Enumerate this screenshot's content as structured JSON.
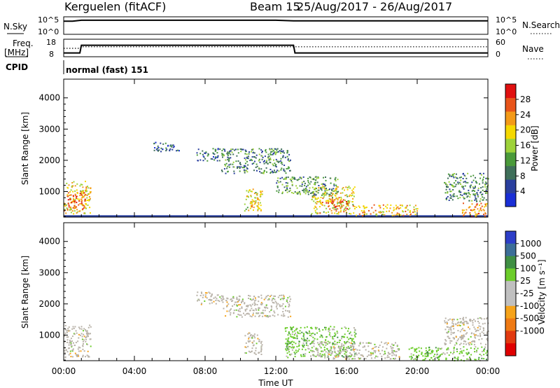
{
  "header": {
    "station": "Kerguelen (fitACF)",
    "beam_label": "Beam 15",
    "date_range": "25/Aug/2017 - 26/Aug/2017"
  },
  "colors": {
    "power_scale": [
      "#1a2fd6",
      "#2a3f9e",
      "#3f6f5a",
      "#4a9a3a",
      "#9ed23a",
      "#f5d800",
      "#f39a18",
      "#e8541a",
      "#e01010"
    ],
    "velocity_scale": [
      "#2d3ec8",
      "#3c6e98",
      "#3f8f43",
      "#6ccd2a",
      "#c0c0c0",
      "#c0c0c0",
      "#f6a31a",
      "#ef7a14",
      "#e23a10",
      "#e00000"
    ],
    "ground_scatter": "#b8b2a8"
  },
  "chart_data": [
    {
      "type": "line",
      "panel": "nsky-nsearch",
      "left_label": "N.Sky",
      "right_label": "N.Search",
      "left_ticks": [
        "10^5",
        "10^0"
      ],
      "right_ticks": [
        "10^5",
        "10^0"
      ],
      "x": [
        "00:00",
        "00:30",
        "01:00",
        "02:00",
        "04:00",
        "08:00",
        "12:00",
        "13:00",
        "16:00",
        "20:00",
        "24:00"
      ],
      "series": [
        {
          "values": [
            4.0,
            4.0,
            4.3,
            4.3,
            4.3,
            4.3,
            4.3,
            4.1,
            4.1,
            4.1,
            4.1
          ]
        }
      ]
    },
    {
      "type": "line",
      "panel": "freq-nave",
      "left_label": "Freq. [MHz]",
      "right_label": "Nave",
      "left_ticks": [
        18,
        8
      ],
      "right_ticks": [
        60,
        0
      ],
      "x": [
        "00:00",
        "00:55",
        "01:00",
        "13:00",
        "13:05",
        "24:00"
      ],
      "series": [
        {
          "name": "",
          "values": [
            10.0,
            10.0,
            15.0,
            15.0,
            10.0,
            10.0
          ]
        },
        {
          "name": "",
          "values": [
            30,
            30,
            36,
            36,
            36,
            36
          ]
        }
      ]
    },
    {
      "type": "table",
      "panel": "cpid",
      "label": "CPID",
      "value": "normal (fast) 151"
    },
    {
      "type": "heatmap",
      "panel": "power",
      "ylabel": "Slant Range [km]",
      "yticks": [
        1000,
        2000,
        3000,
        4000
      ],
      "ylim": [
        180,
        4600
      ],
      "xlim_hours": [
        0,
        24
      ],
      "colorbar_label": "Power [dB]",
      "colorbar_ticks": [
        4,
        8,
        12,
        16,
        20,
        24,
        28
      ],
      "regions": [
        {
          "t0": 0.0,
          "t1": 1.5,
          "r0": 300,
          "r1": 1350,
          "level": 20
        },
        {
          "t0": 0.2,
          "t1": 1.2,
          "r0": 450,
          "r1": 1000,
          "level": 28
        },
        {
          "t0": 10.2,
          "t1": 11.2,
          "r0": 400,
          "r1": 1100,
          "level": 18
        },
        {
          "t0": 10.5,
          "t1": 11.0,
          "r0": 500,
          "r1": 800,
          "level": 24
        },
        {
          "t0": 14.0,
          "t1": 16.5,
          "r0": 300,
          "r1": 1200,
          "level": 20
        },
        {
          "t0": 14.8,
          "t1": 16.0,
          "r0": 400,
          "r1": 800,
          "level": 26
        },
        {
          "t0": 16.5,
          "t1": 20.0,
          "r0": 250,
          "r1": 600,
          "level": 22
        },
        {
          "t0": 22.5,
          "t1": 24.0,
          "r0": 200,
          "r1": 650,
          "level": 24
        },
        {
          "t0": 8.9,
          "t1": 12.8,
          "r0": 1600,
          "r1": 2400,
          "level": 10
        },
        {
          "t0": 12.0,
          "t1": 15.5,
          "r0": 900,
          "r1": 1500,
          "level": 12
        },
        {
          "t0": 21.5,
          "t1": 24.0,
          "r0": 700,
          "r1": 1600,
          "level": 10
        },
        {
          "t0": 5.0,
          "t1": 6.5,
          "r0": 2300,
          "r1": 2600,
          "level": 8
        },
        {
          "t0": 7.5,
          "t1": 9.0,
          "r0": 2000,
          "r1": 2400,
          "level": 8
        }
      ]
    },
    {
      "type": "heatmap",
      "panel": "velocity",
      "ylabel": "Slant Range [km]",
      "yticks": [
        1000,
        2000,
        3000,
        4000
      ],
      "ylim": [
        180,
        4600
      ],
      "xlim_hours": [
        0,
        24
      ],
      "xticks": [
        "00:00",
        "04:00",
        "08:00",
        "12:00",
        "16:00",
        "20:00",
        "00:00"
      ],
      "xlabel": "Time UT",
      "colorbar_label": "Velocity [m s⁻¹]",
      "colorbar_ticks": [
        1000,
        500,
        100,
        25,
        -25,
        -100,
        -500,
        -1000
      ],
      "regions": [
        {
          "t0": 0.0,
          "t1": 1.5,
          "r0": 300,
          "r1": 1350,
          "kind": "ground"
        },
        {
          "t0": 10.2,
          "t1": 11.2,
          "r0": 400,
          "r1": 1100,
          "kind": "ground"
        },
        {
          "t0": 12.5,
          "t1": 16.5,
          "r0": 300,
          "r1": 1300,
          "kind": "green"
        },
        {
          "t0": 14.0,
          "t1": 19.0,
          "r0": 250,
          "r1": 800,
          "kind": "ground"
        },
        {
          "t0": 19.5,
          "t1": 24.0,
          "r0": 200,
          "r1": 650,
          "kind": "green"
        },
        {
          "t0": 21.5,
          "t1": 24.0,
          "r0": 700,
          "r1": 1600,
          "kind": "ground"
        },
        {
          "t0": 9.0,
          "t1": 12.8,
          "r0": 1600,
          "r1": 2300,
          "kind": "ground"
        },
        {
          "t0": 7.5,
          "t1": 9.0,
          "r0": 2000,
          "r1": 2400,
          "kind": "ground"
        }
      ]
    }
  ]
}
